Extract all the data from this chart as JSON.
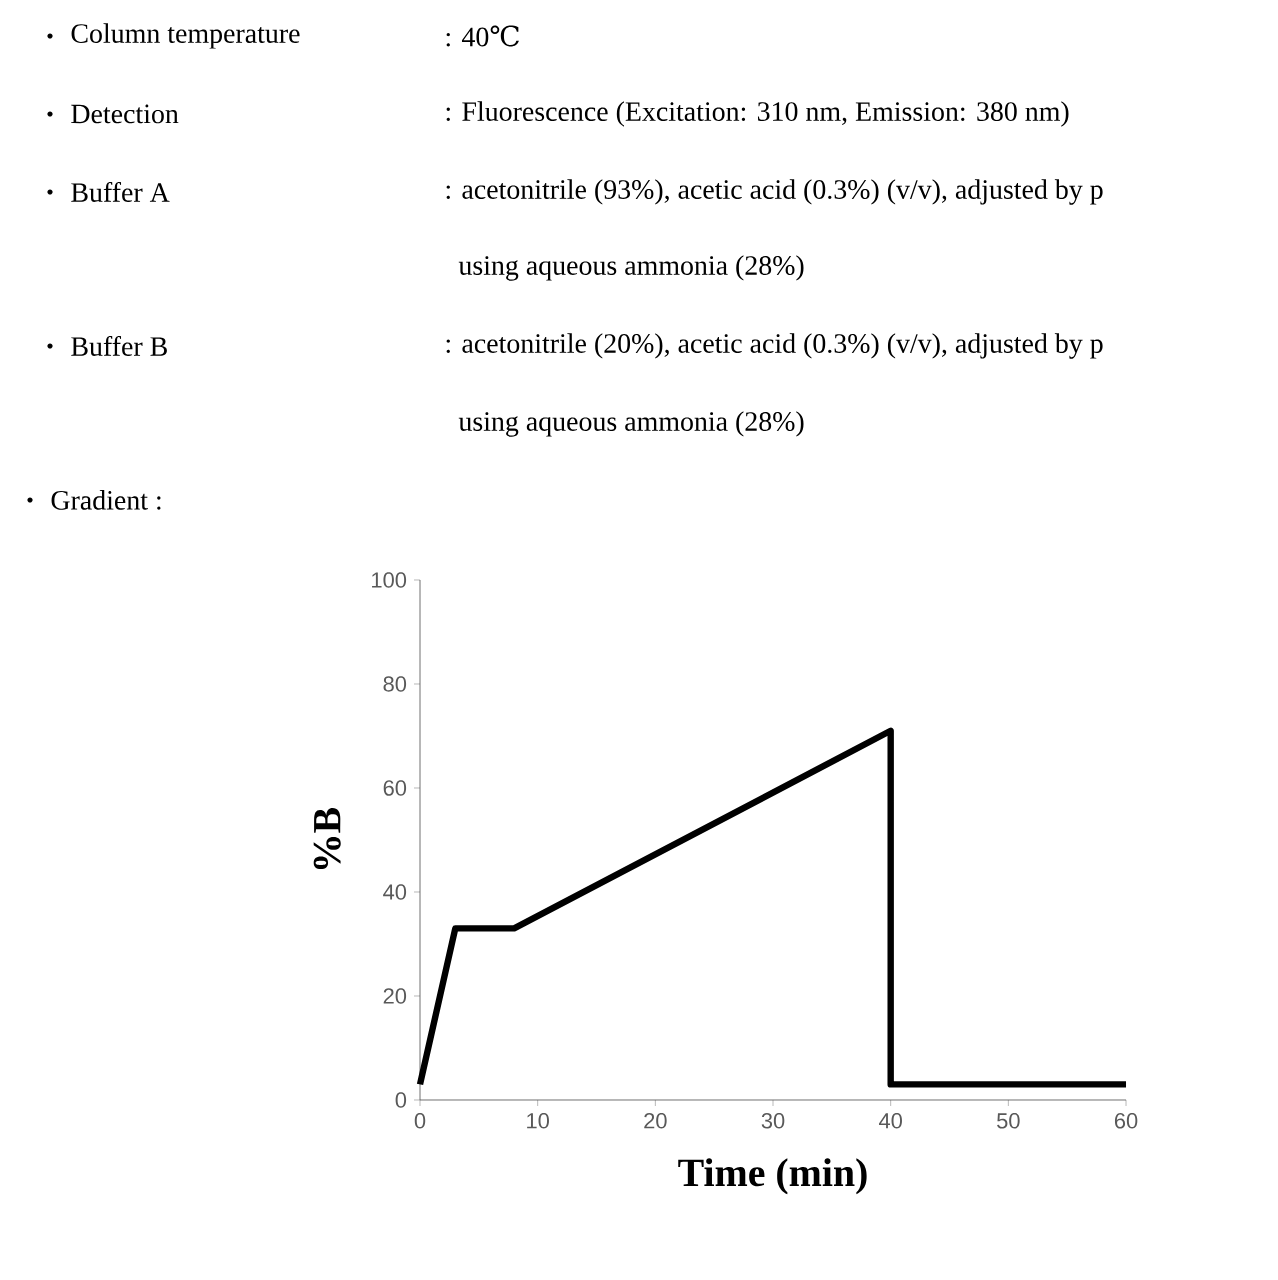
{
  "chart_data": {
    "type": "line",
    "annotations": [
      "Column temperature",
      ": 40℃",
      "Detection",
      ": Fluorescence (Excitation: 310 nm, Emission: 380 nm)",
      "Buffer A",
      ": acetonitrile (93%), acetic acid (0.3%) (v/v), adjusted by p",
      "using aqueous ammonia (28%)",
      "Buffer B",
      ": acetonitrile (20%), acetic acid (0.3%) (v/v), adjusted by p",
      "using aqueous ammonia (28%)",
      "Gradient :"
    ],
    "xlabel": "Time (min)",
    "ylabel": "%B",
    "x": [
      0,
      3,
      8,
      40,
      40,
      60
    ],
    "series": [
      {
        "color": "#000000",
        "values": [
          3,
          33,
          33,
          71,
          3,
          3
        ]
      }
    ],
    "xlim": [
      0,
      60
    ],
    "ylim": [
      0,
      100
    ],
    "xticks": [
      0,
      10,
      20,
      30,
      40,
      50,
      60
    ],
    "yticks": [
      0,
      20,
      40,
      60,
      80,
      100
    ],
    "marker": "none",
    "line_style": "solid"
  }
}
